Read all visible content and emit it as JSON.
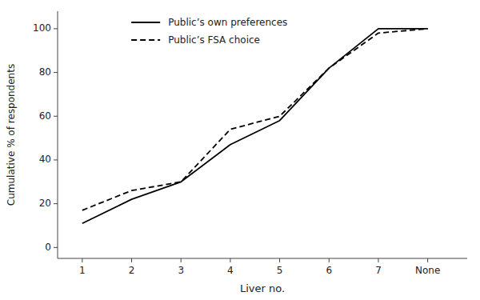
{
  "chart_data": {
    "type": "line",
    "xlabel": "Liver no.",
    "ylabel": "Cumulative % of respondents",
    "x": [
      1,
      2,
      3,
      4,
      5,
      6,
      7,
      8
    ],
    "series": [
      {
        "name": "Public’s own preferences",
        "color": "#000000",
        "line_style": "solid",
        "values": [
          11,
          22,
          30,
          47,
          58,
          82,
          100,
          100
        ]
      },
      {
        "name": "Public’s FSA choice",
        "color": "#000000",
        "line_style": "dashed",
        "values": [
          17,
          26,
          30,
          54,
          60,
          82,
          98,
          100
        ]
      }
    ],
    "xlim": [
      0.5,
      8.8
    ],
    "xticks": [
      1,
      2,
      3,
      4,
      5,
      6,
      7,
      {
        "value": 8,
        "label": "None"
      }
    ],
    "ylim": [
      -5,
      108
    ],
    "yticks": [
      0,
      20,
      40,
      60,
      80,
      100
    ],
    "grid": false,
    "legend": "upper left"
  }
}
